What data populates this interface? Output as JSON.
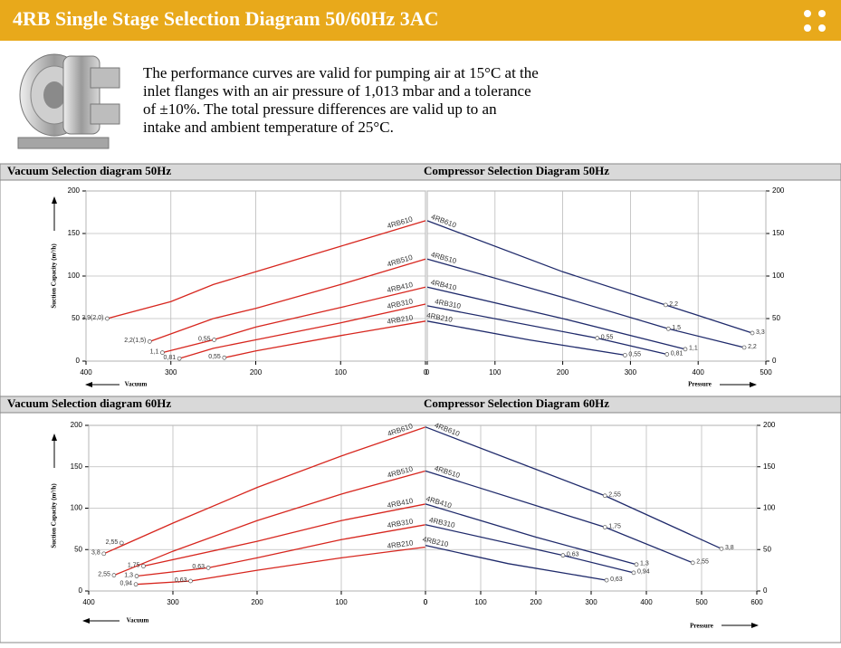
{
  "header": {
    "title": "4RB Single Stage Selection Diagram 50/60Hz 3AC"
  },
  "intro": [
    "The performance curves are valid for pumping air at 15°C at the",
    "inlet flanges with an air pressure of 1,013 mbar and a tolerance",
    "of ±10%. The total pressure differences are valid up to an",
    "intake and ambient temperature of 25°C."
  ],
  "chart_data": [
    {
      "type": "line",
      "title": "Vacuum Selection diagram 50Hz",
      "ylabel": "Suction Capacity (m³/h)",
      "xlabel": "Vacuum",
      "yaxis_side": "left",
      "grid": true,
      "xlim": [
        400,
        0
      ],
      "ylim": [
        0,
        200
      ],
      "xticks": [
        400,
        300,
        200,
        100,
        0
      ],
      "yticks": [
        0,
        50,
        100,
        150,
        200
      ],
      "series": [
        {
          "name": "4RB610",
          "color": "#d7261e",
          "x": [
            375,
            300,
            250,
            200,
            100,
            0
          ],
          "values": [
            50,
            70,
            90,
            105,
            135,
            165
          ],
          "annotations": [
            {
              "x": 375,
              "y": 50,
              "label": "3,9(2,0)"
            }
          ]
        },
        {
          "name": "4RB510",
          "color": "#d7261e",
          "x": [
            325,
            250,
            200,
            100,
            0
          ],
          "values": [
            23,
            50,
            62,
            90,
            120
          ],
          "annotations": [
            {
              "x": 325,
              "y": 23,
              "label": "2,2(1,5)"
            }
          ]
        },
        {
          "name": "4RB410",
          "color": "#d7261e",
          "x": [
            310,
            250,
            200,
            100,
            0
          ],
          "values": [
            10,
            25,
            40,
            63,
            87
          ],
          "annotations": [
            {
              "x": 310,
              "y": 10,
              "label": "1,1"
            },
            {
              "x": 249,
              "y": 25,
              "label": "0,55"
            }
          ]
        },
        {
          "name": "4RB310",
          "color": "#d7261e",
          "x": [
            290,
            250,
            200,
            100,
            0
          ],
          "values": [
            3,
            15,
            25,
            45,
            67
          ],
          "annotations": [
            {
              "x": 290,
              "y": 3,
              "label": "0,81"
            }
          ]
        },
        {
          "name": "4RB210",
          "color": "#d7261e",
          "x": [
            237,
            200,
            100,
            0
          ],
          "values": [
            4,
            12,
            30,
            47
          ],
          "annotations": [
            {
              "x": 237,
              "y": 4,
              "label": "0,55"
            }
          ]
        }
      ]
    },
    {
      "type": "line",
      "title": "Compressor Selection Diagram 50Hz",
      "xlabel": "Pressure",
      "yaxis_side": "right",
      "grid": true,
      "xlim": [
        0,
        500
      ],
      "ylim": [
        0,
        200
      ],
      "xticks": [
        0,
        100,
        200,
        300,
        400,
        500
      ],
      "yticks": [
        0,
        50,
        100,
        150,
        200
      ],
      "series": [
        {
          "name": "4RB610",
          "color": "#1f2a6b",
          "x": [
            0,
            200,
            352,
            480
          ],
          "values": [
            165,
            105,
            66,
            33
          ],
          "annotations": [
            {
              "x": 352,
              "y": 66,
              "label": "2,2"
            },
            {
              "x": 480,
              "y": 33,
              "label": "3,3"
            }
          ]
        },
        {
          "name": "4RB510",
          "color": "#1f2a6b",
          "x": [
            0,
            200,
            356,
            468
          ],
          "values": [
            120,
            75,
            38,
            16
          ],
          "annotations": [
            {
              "x": 356,
              "y": 38,
              "label": "1,5"
            },
            {
              "x": 468,
              "y": 16,
              "label": "2,2"
            }
          ]
        },
        {
          "name": "4RB410",
          "color": "#1f2a6b",
          "x": [
            0,
            200,
            381
          ],
          "values": [
            87,
            50,
            14
          ],
          "annotations": [
            {
              "x": 381,
              "y": 14,
              "label": "1,1"
            }
          ]
        },
        {
          "name": "4RB310",
          "color": "#1f2a6b",
          "x": [
            0,
            251,
            354
          ],
          "values": [
            65,
            27,
            8
          ],
          "annotations": [
            {
              "x": 251,
              "y": 27,
              "label": "0,55"
            },
            {
              "x": 354,
              "y": 8,
              "label": "0,81"
            }
          ]
        },
        {
          "name": "4RB210",
          "color": "#1f2a6b",
          "x": [
            0,
            150,
            292
          ],
          "values": [
            47,
            25,
            7
          ],
          "annotations": [
            {
              "x": 292,
              "y": 7,
              "label": "0,55"
            }
          ]
        }
      ]
    },
    {
      "type": "line",
      "title": "Vacuum Selection diagram 60Hz",
      "ylabel": "Suction Capacity (m³/h)",
      "xlabel": "Vacuum",
      "yaxis_side": "left",
      "grid": true,
      "xlim": [
        400,
        0
      ],
      "ylim": [
        0,
        200
      ],
      "xticks": [
        400,
        300,
        200,
        100,
        0
      ],
      "yticks": [
        0,
        50,
        100,
        150,
        200
      ],
      "series": [
        {
          "name": "4RB610",
          "color": "#d7261e",
          "x": [
            382,
            300,
            200,
            100,
            0
          ],
          "values": [
            45,
            82,
            125,
            163,
            198
          ],
          "annotations": [
            {
              "x": 382,
              "y": 45,
              "label": "3,8"
            },
            {
              "x": 361,
              "y": 58,
              "label": "2,55"
            }
          ]
        },
        {
          "name": "4RB510",
          "color": "#d7261e",
          "x": [
            370,
            300,
            200,
            100,
            0
          ],
          "values": [
            19,
            48,
            85,
            117,
            145
          ],
          "annotations": [
            {
              "x": 370,
              "y": 19,
              "label": "2,55"
            }
          ]
        },
        {
          "name": "4RB410",
          "color": "#d7261e",
          "x": [
            335,
            200,
            100,
            0
          ],
          "values": [
            30,
            60,
            85,
            105
          ],
          "annotations": [
            {
              "x": 335,
              "y": 30,
              "label": "1,75"
            }
          ]
        },
        {
          "name": "4RB310",
          "color": "#d7261e",
          "x": [
            343,
            258,
            200,
            100,
            0
          ],
          "values": [
            18,
            28,
            40,
            62,
            80
          ],
          "annotations": [
            {
              "x": 343,
              "y": 18,
              "label": "1,3"
            },
            {
              "x": 258,
              "y": 28,
              "label": "0,63"
            }
          ]
        },
        {
          "name": "4RB210",
          "color": "#d7261e",
          "x": [
            344,
            279,
            200,
            100,
            0
          ],
          "values": [
            8,
            12,
            25,
            40,
            53
          ],
          "annotations": [
            {
              "x": 344,
              "y": 8,
              "label": "0,94"
            },
            {
              "x": 279,
              "y": 12,
              "label": "0,63"
            }
          ]
        }
      ]
    },
    {
      "type": "line",
      "title": "Compressor Selection Diagram 60Hz",
      "xlabel": "Pressure",
      "yaxis_side": "right",
      "grid": true,
      "xlim": [
        0,
        600
      ],
      "ylim": [
        0,
        200
      ],
      "xticks": [
        0,
        100,
        200,
        300,
        400,
        500,
        600
      ],
      "yticks": [
        0,
        50,
        100,
        150,
        200
      ],
      "series": [
        {
          "name": "4RB610",
          "color": "#1f2a6b",
          "x": [
            0,
            325,
            536
          ],
          "values": [
            198,
            115,
            51
          ],
          "annotations": [
            {
              "x": 325,
              "y": 115,
              "label": "2,55"
            },
            {
              "x": 536,
              "y": 51,
              "label": "3,8"
            }
          ]
        },
        {
          "name": "4RB510",
          "color": "#1f2a6b",
          "x": [
            0,
            325,
            484
          ],
          "values": [
            145,
            77,
            34
          ],
          "annotations": [
            {
              "x": 325,
              "y": 77,
              "label": "1,75"
            },
            {
              "x": 484,
              "y": 34,
              "label": "2,55"
            }
          ]
        },
        {
          "name": "4RB410",
          "color": "#1f2a6b",
          "x": [
            0,
            200,
            382
          ],
          "values": [
            105,
            65,
            32
          ],
          "annotations": [
            {
              "x": 382,
              "y": 32,
              "label": "1,3"
            }
          ]
        },
        {
          "name": "4RB310",
          "color": "#1f2a6b",
          "x": [
            0,
            249,
            377
          ],
          "values": [
            80,
            43,
            22
          ],
          "annotations": [
            {
              "x": 249,
              "y": 43,
              "label": "0,63"
            },
            {
              "x": 377,
              "y": 22,
              "label": "0,94"
            }
          ]
        },
        {
          "name": "4RB210",
          "color": "#1f2a6b",
          "x": [
            0,
            150,
            328
          ],
          "values": [
            55,
            33,
            13
          ],
          "annotations": [
            {
              "x": 328,
              "y": 13,
              "label": "0,63"
            }
          ]
        }
      ]
    }
  ]
}
